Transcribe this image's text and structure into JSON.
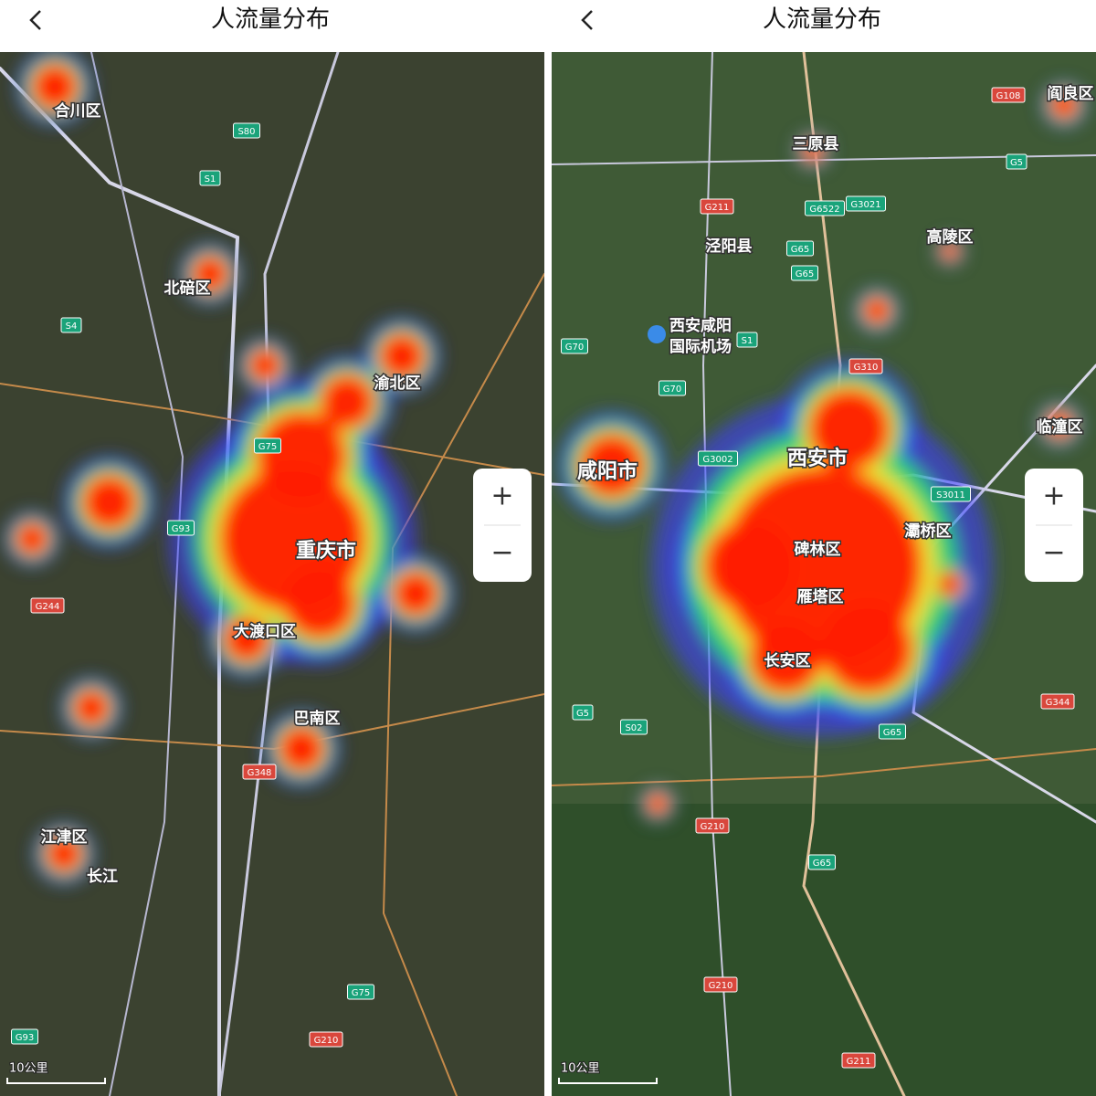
{
  "panels": [
    {
      "title": "人流量分布",
      "zoom_in": "+",
      "zoom_out": "−",
      "scale": "10公里",
      "places": [
        "合川区",
        "北碚区",
        "渝北区",
        "重庆市",
        "大渡口区",
        "巴南区",
        "江津区",
        "长江"
      ],
      "road_signs": [
        "S80",
        "S1",
        "S4",
        "G75",
        "G93",
        "G244",
        "G348",
        "G75",
        "G210",
        "G93"
      ]
    },
    {
      "title": "人流量分布",
      "zoom_in": "+",
      "zoom_out": "−",
      "scale": "10公里",
      "places": [
        "三原县",
        "泾阳县",
        "高陵区",
        "阎良区",
        "西安咸阳",
        "国际机场",
        "咸阳市",
        "西安市",
        "碑林区",
        "灞桥区",
        "雁塔区",
        "长安区",
        "临潼区"
      ],
      "road_signs": [
        "G108",
        "G5",
        "G211",
        "G6522",
        "G3021",
        "G65",
        "G65",
        "S1",
        "G70",
        "G70",
        "G310",
        "G3002",
        "S3011",
        "G5",
        "S02",
        "G65",
        "G344",
        "G210",
        "G65",
        "G210",
        "G211"
      ]
    }
  ]
}
